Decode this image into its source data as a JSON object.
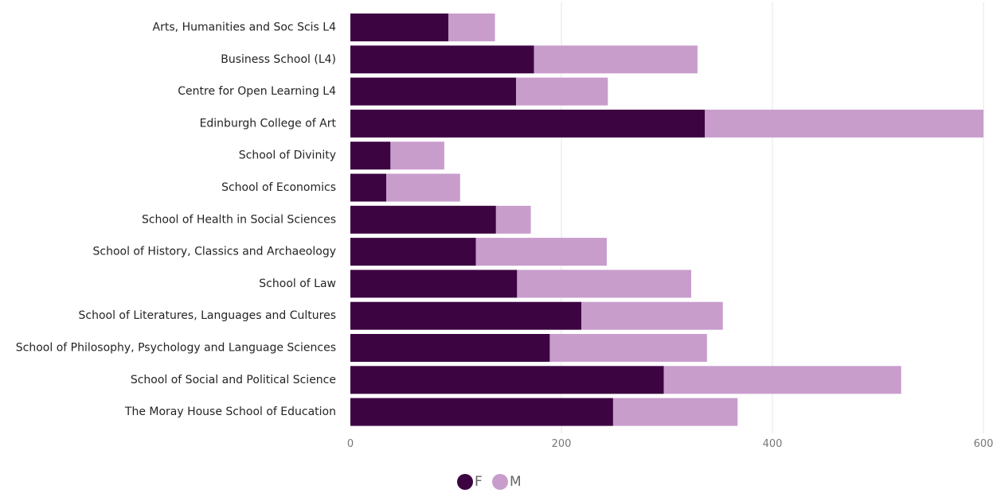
{
  "chart_data": {
    "type": "bar",
    "orientation": "horizontal",
    "stacked": true,
    "categories": [
      "Arts, Humanities and Soc Scis L4",
      "Business School (L4)",
      "Centre for Open Learning L4",
      "Edinburgh College of Art",
      "School of Divinity",
      "School of Economics",
      "School of Health in Social Sciences",
      "School of History, Classics and Archaeology",
      "School of Law",
      "School of Literatures, Languages and Cultures",
      "School of Philosophy, Psychology and Language Sciences",
      "School of Social and Political Science",
      "The Moray House School of Education"
    ],
    "series": [
      {
        "name": "F",
        "color": "#3d0442",
        "values": [
          93,
          174,
          157,
          336,
          38,
          34,
          138,
          119,
          158,
          219,
          189,
          297,
          249
        ]
      },
      {
        "name": "M",
        "color": "#c89dcc",
        "values": [
          44,
          155,
          87,
          264,
          51,
          70,
          33,
          124,
          165,
          134,
          149,
          225,
          118
        ]
      }
    ],
    "xlim": [
      0,
      600
    ],
    "xticks": [
      "0",
      "200",
      "400",
      "600"
    ],
    "grid": true,
    "legend": {
      "position": "bottom-center",
      "entries": [
        "F",
        "M"
      ]
    }
  }
}
